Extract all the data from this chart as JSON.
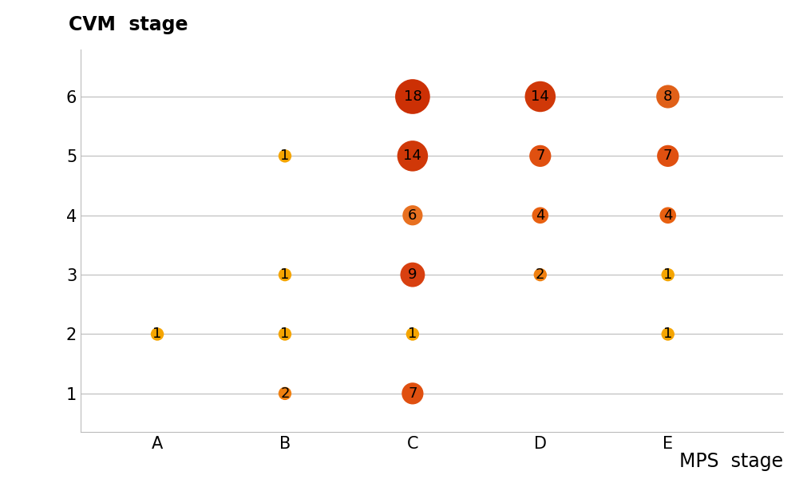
{
  "mps_stages": [
    "A",
    "B",
    "C",
    "D",
    "E"
  ],
  "cvm_stages": [
    1,
    2,
    3,
    4,
    5,
    6
  ],
  "bubbles": [
    {
      "mps": "A",
      "cvm": 2,
      "value": 1
    },
    {
      "mps": "B",
      "cvm": 1,
      "value": 2
    },
    {
      "mps": "B",
      "cvm": 2,
      "value": 1
    },
    {
      "mps": "B",
      "cvm": 3,
      "value": 1
    },
    {
      "mps": "B",
      "cvm": 5,
      "value": 1
    },
    {
      "mps": "C",
      "cvm": 1,
      "value": 7
    },
    {
      "mps": "C",
      "cvm": 2,
      "value": 1
    },
    {
      "mps": "C",
      "cvm": 3,
      "value": 9
    },
    {
      "mps": "C",
      "cvm": 4,
      "value": 6
    },
    {
      "mps": "C",
      "cvm": 5,
      "value": 14
    },
    {
      "mps": "C",
      "cvm": 6,
      "value": 18
    },
    {
      "mps": "D",
      "cvm": 3,
      "value": 2
    },
    {
      "mps": "D",
      "cvm": 4,
      "value": 4
    },
    {
      "mps": "D",
      "cvm": 5,
      "value": 7
    },
    {
      "mps": "D",
      "cvm": 6,
      "value": 14
    },
    {
      "mps": "E",
      "cvm": 2,
      "value": 1
    },
    {
      "mps": "E",
      "cvm": 3,
      "value": 1
    },
    {
      "mps": "E",
      "cvm": 4,
      "value": 4
    },
    {
      "mps": "E",
      "cvm": 5,
      "value": 7
    },
    {
      "mps": "E",
      "cvm": 6,
      "value": 8
    }
  ],
  "colors": {
    "1": "#F5A500",
    "2": "#F08010",
    "4": "#E86010",
    "6": "#E87020",
    "7": "#E05010",
    "8": "#E06018",
    "9": "#D84010",
    "14": "#D03808",
    "18": "#CC3005"
  },
  "xlabel": "MPS  stage",
  "ylabel": "CVM  stage",
  "scale_factor": 55,
  "min_size": 140,
  "bg_color": "#ffffff",
  "grid_color": "#bbbbbb",
  "text_color": "#000000",
  "label_fontsize": 17,
  "tick_fontsize": 15,
  "bubble_label_fontsize": 13
}
